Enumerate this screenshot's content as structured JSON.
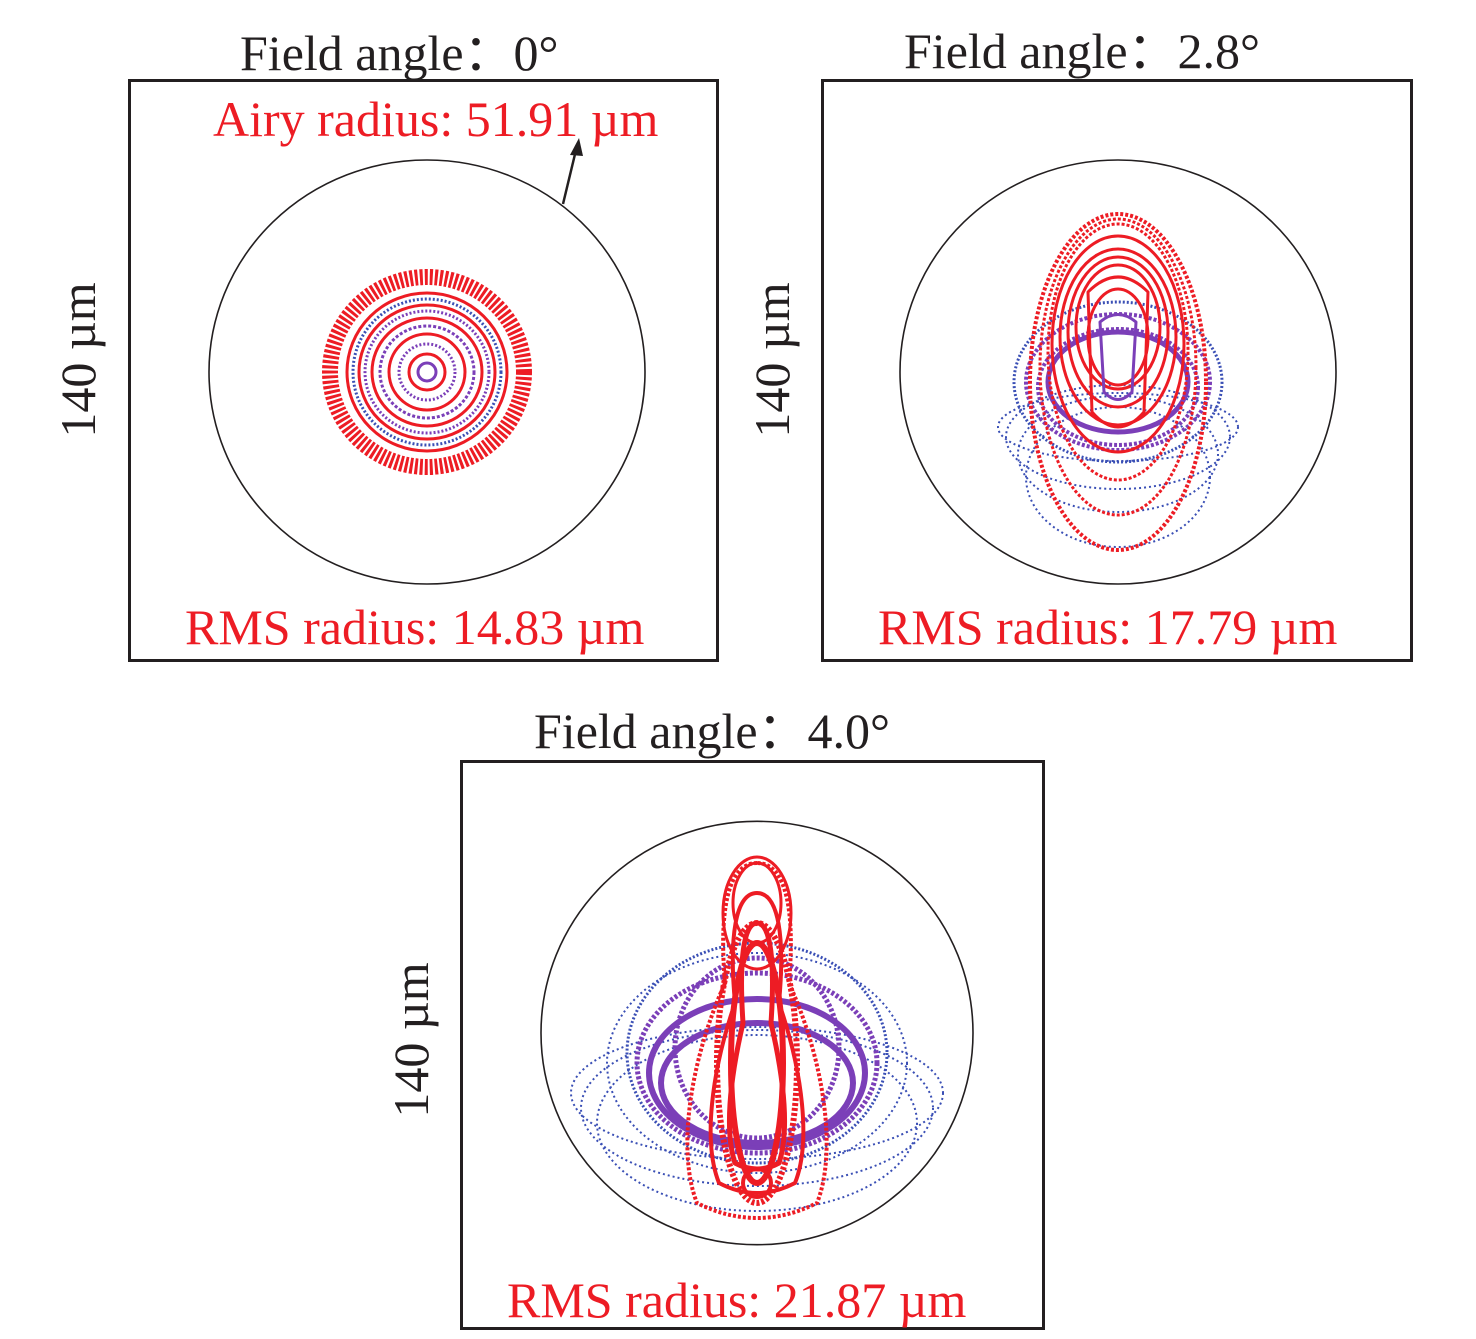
{
  "panels": [
    {
      "title": "Field angle：0°",
      "y_label": "140 µm",
      "airy_label": "Airy radius: 51.91 µm",
      "rms_label": "RMS radius: 14.83 µm"
    },
    {
      "title": "Field angle：2.8°",
      "y_label": "140 µm",
      "rms_label": "RMS radius: 17.79 µm"
    },
    {
      "title": "Field angle：4.0°",
      "y_label": "140 µm",
      "rms_label": "RMS radius: 21.87 µm"
    }
  ],
  "colors": {
    "red": "#ed1c24",
    "blue": "#3a4fb5",
    "purple": "#7b3fb8",
    "frame": "#231f20"
  }
}
